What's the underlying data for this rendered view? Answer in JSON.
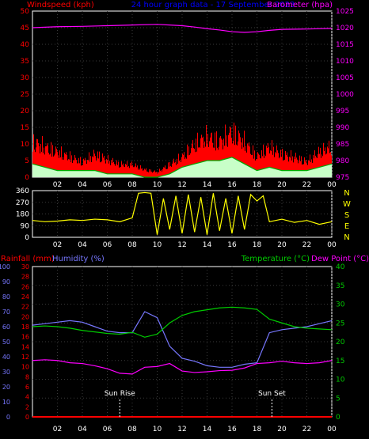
{
  "header": {
    "left_title": "Windspeed (kph)",
    "center_title": "24 hour graph data - 17 September 2023",
    "right_title": "Barometer (hpa)"
  },
  "wind_dir_letters": [
    "N",
    "W",
    "S",
    "E",
    "N"
  ],
  "bottom_labels": {
    "rain": "Rainfall (mm)",
    "humidity": "Humidity (%)",
    "temperature": "Temperature (°C)",
    "dewpoint": "Dew Point (°C)",
    "sunrise": "Sun Rise",
    "sunset": "Sun Set"
  },
  "colors": {
    "wind_gust": "#ff0000",
    "wind_avg": "#00aa00",
    "wind_low": "#c8ffc8",
    "barometer": "#ff00ff",
    "direction": "#ffff00",
    "rain": "#ff0000",
    "humidity": "#7777ff",
    "temperature": "#00cc00",
    "dewpoint": "#ff00ff",
    "sun_marker": "#ffffff"
  },
  "chart_data": [
    {
      "type": "line",
      "id": "wind_baro",
      "x_ticks": [
        "02",
        "04",
        "06",
        "08",
        "10",
        "12",
        "14",
        "16",
        "18",
        "20",
        "22",
        "00"
      ],
      "y_left": {
        "label": "Windspeed (kph)",
        "ylim": [
          0,
          50
        ],
        "ticks": [
          0,
          5,
          10,
          15,
          20,
          25,
          30,
          35,
          40,
          45,
          50
        ]
      },
      "y_right": {
        "label": "Barometer (hpa)",
        "ylim": [
          975,
          1025
        ],
        "ticks": [
          975,
          980,
          985,
          990,
          995,
          1000,
          1005,
          1010,
          1015,
          1020,
          1025
        ]
      },
      "series": [
        {
          "name": "Windspeed (kph)",
          "x": [
            0,
            1,
            2,
            3,
            4,
            5,
            6,
            7,
            8,
            9,
            10,
            11,
            12,
            13,
            14,
            15,
            16,
            17,
            18,
            19,
            20,
            21,
            22,
            23,
            24
          ],
          "values": [
            14,
            12,
            10,
            8,
            6,
            9,
            7,
            5,
            5,
            3,
            2,
            5,
            8,
            13,
            16,
            14,
            18,
            14,
            8,
            12,
            9,
            8,
            6,
            10,
            12
          ]
        },
        {
          "name": "Average wind",
          "x": [
            0,
            1,
            2,
            3,
            4,
            5,
            6,
            7,
            8,
            9,
            10,
            11,
            12,
            13,
            14,
            15,
            16,
            17,
            18,
            19,
            20,
            21,
            22,
            23,
            24
          ],
          "values": [
            4,
            3,
            2,
            2,
            2,
            2,
            1,
            1,
            1,
            0,
            0,
            1,
            3,
            4,
            5,
            5,
            6,
            4,
            2,
            3,
            2,
            2,
            2,
            3,
            4
          ]
        },
        {
          "name": "Barometer (hpa)",
          "x": [
            0,
            2,
            4,
            6,
            8,
            10,
            11,
            12,
            13,
            14,
            15,
            16,
            17,
            18,
            19,
            20,
            22,
            24
          ],
          "values": [
            1020,
            1020.3,
            1020.4,
            1020.6,
            1020.8,
            1021,
            1020.8,
            1020.6,
            1020.2,
            1019.7,
            1019.3,
            1018.8,
            1018.6,
            1018.8,
            1019.2,
            1019.5,
            1019.6,
            1019.8
          ]
        }
      ]
    },
    {
      "type": "line",
      "id": "wind_direction",
      "x_ticks": [
        "02",
        "04",
        "06",
        "08",
        "10",
        "12",
        "14",
        "16",
        "18",
        "20",
        "22",
        "00"
      ],
      "y": {
        "ylim": [
          0,
          360
        ],
        "ticks": [
          0,
          90,
          180,
          270,
          360
        ]
      },
      "series": [
        {
          "name": "Wind direction",
          "x": [
            0,
            1,
            2,
            3,
            4,
            5,
            6,
            7,
            8,
            8.5,
            9,
            9.5,
            10,
            10.5,
            11,
            11.5,
            12,
            12.5,
            13,
            13.5,
            14,
            14.5,
            15,
            15.5,
            16,
            16.5,
            17,
            17.5,
            18,
            18.5,
            19,
            20,
            21,
            22,
            23,
            24
          ],
          "values": [
            130,
            120,
            125,
            135,
            130,
            140,
            135,
            120,
            150,
            340,
            345,
            340,
            20,
            300,
            60,
            320,
            30,
            330,
            40,
            310,
            20,
            340,
            50,
            300,
            30,
            320,
            60,
            330,
            280,
            320,
            120,
            140,
            115,
            130,
            100,
            120
          ]
        }
      ]
    },
    {
      "type": "line",
      "id": "temp_humidity",
      "x_ticks": [
        "02",
        "04",
        "06",
        "08",
        "10",
        "12",
        "14",
        "16",
        "18",
        "20",
        "22",
        "00"
      ],
      "y_rain": {
        "label": "Rainfall (mm)",
        "ylim": [
          0,
          30
        ],
        "ticks": [
          0,
          2,
          4,
          6,
          8,
          10,
          12,
          14,
          16,
          18,
          20,
          22,
          24,
          26,
          28,
          30
        ]
      },
      "y_humidity": {
        "label": "Humidity (%)",
        "ylim": [
          0,
          100
        ],
        "ticks": [
          0,
          10,
          20,
          30,
          40,
          50,
          60,
          70,
          80,
          90,
          100
        ]
      },
      "y_right": {
        "label": "Temperature (°C)",
        "ylim": [
          0,
          40
        ],
        "ticks": [
          0,
          5,
          10,
          15,
          20,
          25,
          30,
          35,
          40
        ]
      },
      "series": [
        {
          "name": "Rainfall (mm)",
          "axis": "rain",
          "x": [
            0,
            24
          ],
          "values": [
            0,
            0
          ]
        },
        {
          "name": "Humidity (%)",
          "axis": "humidity",
          "x": [
            0,
            1,
            2,
            3,
            4,
            5,
            6,
            7,
            8,
            9,
            10,
            11,
            12,
            13,
            14,
            15,
            16,
            17,
            18,
            19,
            20,
            21,
            22,
            23,
            24
          ],
          "values": [
            61,
            62,
            63,
            64,
            63,
            60,
            57,
            56,
            56,
            70,
            66,
            47,
            39,
            37,
            34,
            33,
            33,
            35,
            36,
            56,
            58,
            59,
            60,
            62,
            64
          ]
        },
        {
          "name": "Temperature (°C)",
          "axis": "right",
          "x": [
            0,
            1,
            2,
            3,
            4,
            5,
            6,
            7,
            8,
            9,
            10,
            11,
            12,
            13,
            14,
            15,
            16,
            17,
            18,
            19,
            20,
            21,
            22,
            23,
            24
          ],
          "values": [
            24,
            24.2,
            24,
            23.6,
            23,
            22.6,
            22.2,
            22,
            22.5,
            21.2,
            22,
            25,
            27,
            28,
            28.5,
            29,
            29.2,
            29,
            28.6,
            26,
            25,
            24,
            23.6,
            23.4,
            23.2
          ]
        },
        {
          "name": "Dew Point (°C)",
          "axis": "right",
          "x": [
            0,
            1,
            2,
            3,
            4,
            5,
            6,
            7,
            8,
            9,
            10,
            11,
            12,
            13,
            14,
            15,
            16,
            17,
            18,
            19,
            20,
            21,
            22,
            23,
            24
          ],
          "values": [
            15,
            15.2,
            15,
            14.4,
            14.2,
            13.6,
            12.8,
            11.6,
            11.4,
            13.2,
            13.4,
            14.2,
            12.2,
            11.8,
            12,
            12.3,
            12.4,
            13,
            14.2,
            14.4,
            14.8,
            14.4,
            14.2,
            14.4,
            15
          ]
        }
      ],
      "markers": [
        {
          "label": "Sun Rise",
          "x": 7.0
        },
        {
          "label": "Sun Set",
          "x": 19.2
        }
      ]
    }
  ]
}
